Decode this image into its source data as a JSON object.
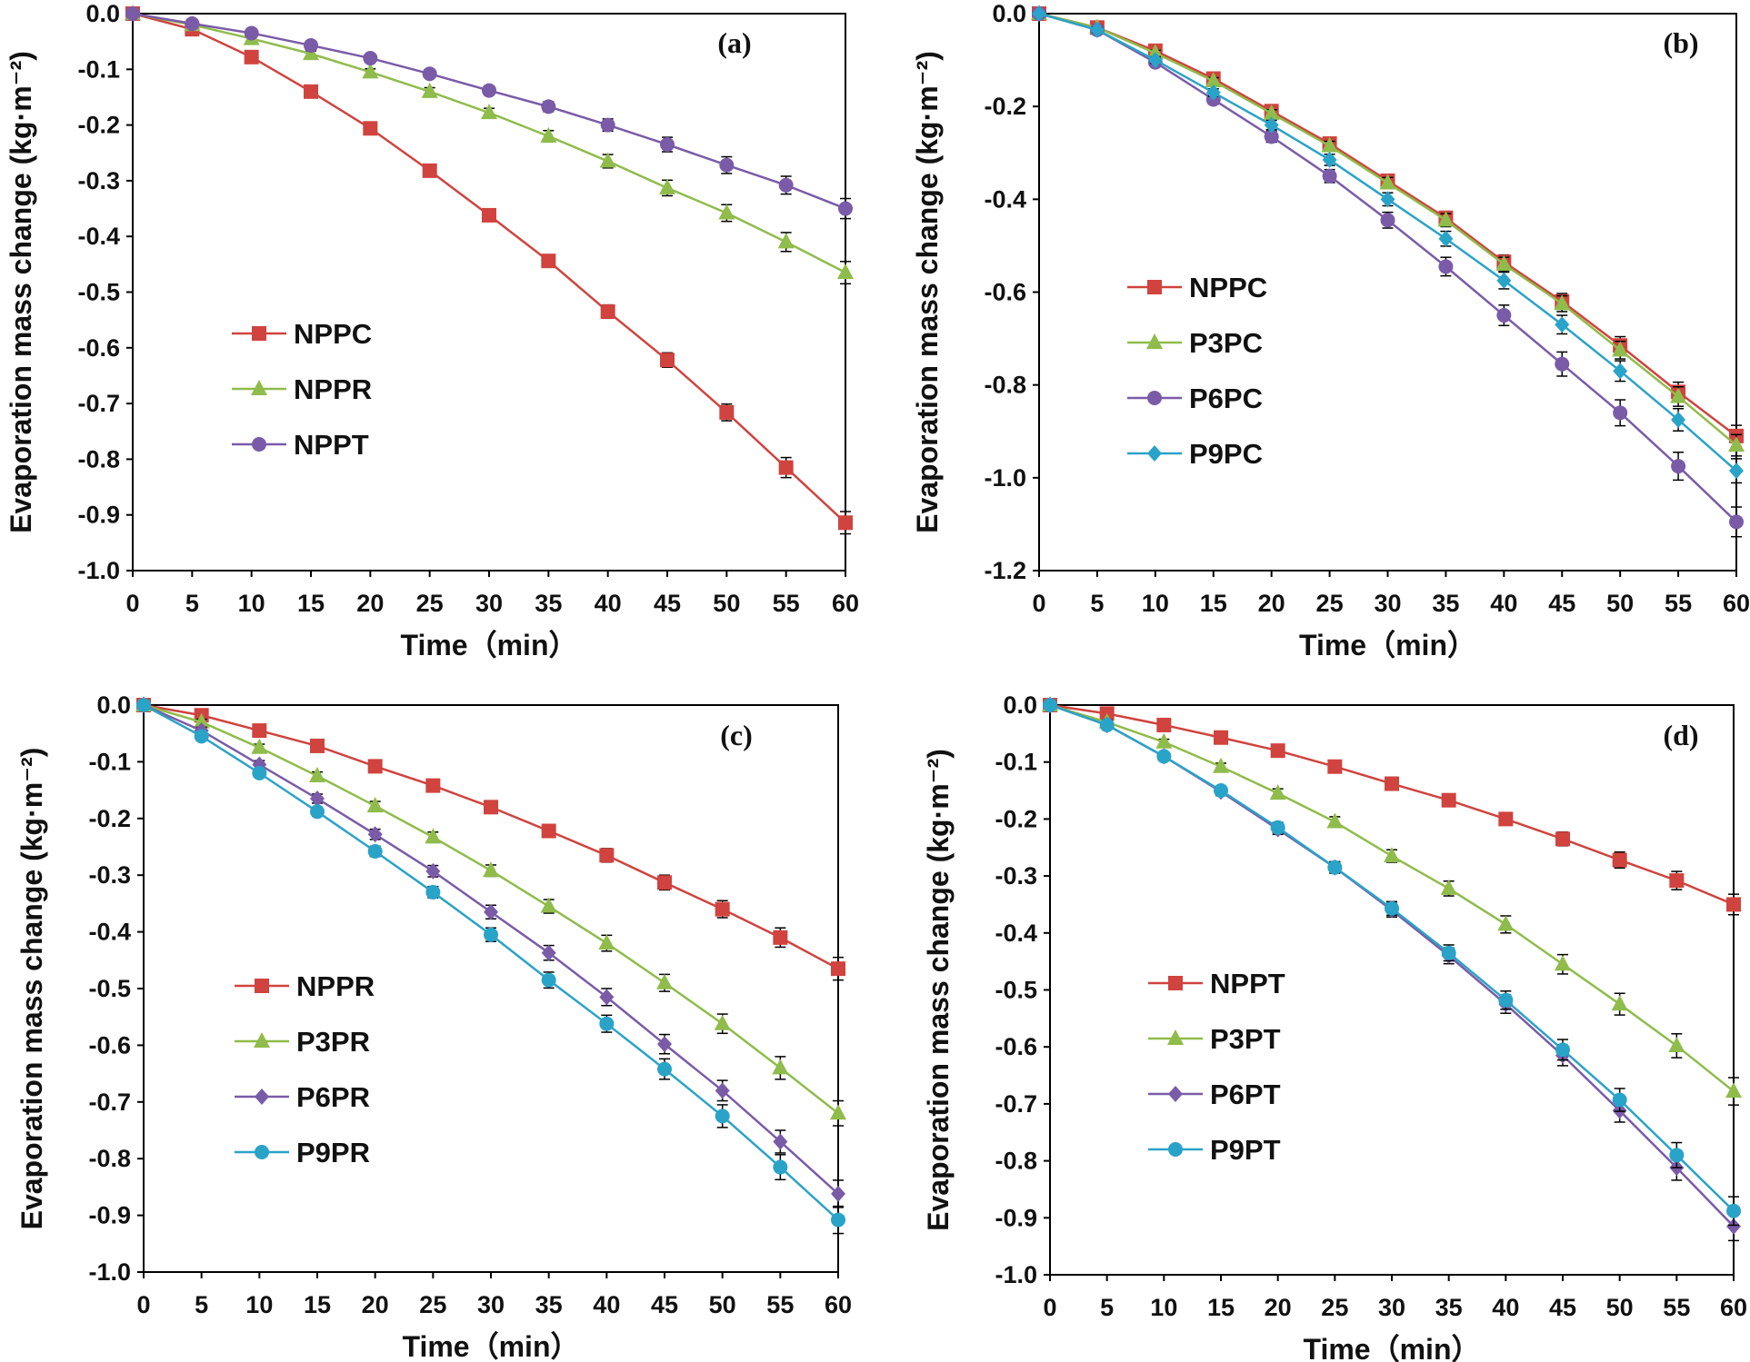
{
  "chart_data": [
    {
      "type": "line",
      "panel_label": "(a)",
      "xlabel": "Time（min）",
      "ylabel": "Evaporation mass change (kg·m⁻²)",
      "x": [
        0,
        5,
        10,
        15,
        20,
        25,
        30,
        35,
        40,
        45,
        50,
        55,
        60
      ],
      "xlim": [
        0,
        60
      ],
      "ylim": [
        -1.0,
        0.0
      ],
      "yticks": [
        0.0,
        -0.1,
        -0.2,
        -0.3,
        -0.4,
        -0.5,
        -0.6,
        -0.7,
        -0.8,
        -0.9,
        -1.0
      ],
      "ytick_labels": [
        "0.0",
        "-0.1",
        "-0.2",
        "-0.3",
        "-0.4",
        "-0.5",
        "-0.6",
        "-0.7",
        "-0.8",
        "-0.9",
        "-1.0"
      ],
      "legend_position": "middle-left",
      "series": [
        {
          "name": "NPPC",
          "color": "#d0433e",
          "marker": "square",
          "values": [
            0,
            -0.028,
            -0.078,
            -0.14,
            -0.206,
            -0.282,
            -0.362,
            -0.444,
            -0.535,
            -0.622,
            -0.716,
            -0.815,
            -0.914
          ],
          "errors": [
            0,
            0.005,
            0.006,
            0.006,
            0.007,
            0.008,
            0.009,
            0.01,
            0.012,
            0.013,
            0.015,
            0.018,
            0.02
          ]
        },
        {
          "name": "NPPR",
          "color": "#8fbc4a",
          "marker": "triangle",
          "values": [
            0,
            -0.02,
            -0.045,
            -0.072,
            -0.105,
            -0.14,
            -0.178,
            -0.22,
            -0.265,
            -0.313,
            -0.358,
            -0.41,
            -0.465
          ],
          "errors": [
            0,
            0.004,
            0.005,
            0.005,
            0.006,
            0.007,
            0.008,
            0.01,
            0.012,
            0.014,
            0.015,
            0.017,
            0.02
          ]
        },
        {
          "name": "NPPT",
          "color": "#7a5ba8",
          "marker": "circle",
          "values": [
            0,
            -0.018,
            -0.035,
            -0.057,
            -0.08,
            -0.108,
            -0.138,
            -0.167,
            -0.2,
            -0.235,
            -0.272,
            -0.308,
            -0.35
          ],
          "errors": [
            0,
            0.003,
            0.004,
            0.005,
            0.005,
            0.006,
            0.008,
            0.009,
            0.011,
            0.013,
            0.015,
            0.016,
            0.018
          ]
        }
      ]
    },
    {
      "type": "line",
      "panel_label": "(b)",
      "xlabel": "Time（min）",
      "ylabel": "Evaporation mass change (kg·m⁻²)",
      "x": [
        0,
        5,
        10,
        15,
        20,
        25,
        30,
        35,
        40,
        45,
        50,
        55,
        60
      ],
      "xlim": [
        0,
        60
      ],
      "ylim": [
        -1.2,
        0.0
      ],
      "yticks": [
        0.0,
        -0.2,
        -0.4,
        -0.6,
        -0.8,
        -1.0,
        -1.2
      ],
      "ytick_labels": [
        "0.0",
        "-0.2",
        "-0.4",
        "-0.6",
        "-0.8",
        "-1.0",
        "-1.2"
      ],
      "legend_position": "middle-left",
      "series": [
        {
          "name": "NPPC",
          "color": "#d0433e",
          "marker": "square",
          "values": [
            0,
            -0.03,
            -0.08,
            -0.14,
            -0.21,
            -0.28,
            -0.36,
            -0.44,
            -0.535,
            -0.62,
            -0.715,
            -0.815,
            -0.91
          ],
          "errors": [
            0,
            0.005,
            0.006,
            0.007,
            0.008,
            0.01,
            0.012,
            0.014,
            0.015,
            0.017,
            0.019,
            0.021,
            0.023
          ]
        },
        {
          "name": "P3PC",
          "color": "#8fbc4a",
          "marker": "triangle",
          "values": [
            0,
            -0.03,
            -0.085,
            -0.145,
            -0.215,
            -0.285,
            -0.365,
            -0.445,
            -0.54,
            -0.625,
            -0.725,
            -0.825,
            -0.93
          ],
          "errors": [
            0,
            0.005,
            0.006,
            0.007,
            0.008,
            0.01,
            0.012,
            0.014,
            0.015,
            0.017,
            0.019,
            0.021,
            0.023
          ]
        },
        {
          "name": "P6PC",
          "color": "#7a5ba8",
          "marker": "circle",
          "values": [
            0,
            -0.035,
            -0.105,
            -0.185,
            -0.265,
            -0.35,
            -0.445,
            -0.545,
            -0.65,
            -0.755,
            -0.86,
            -0.975,
            -1.095
          ],
          "errors": [
            0,
            0.006,
            0.008,
            0.01,
            0.012,
            0.014,
            0.017,
            0.02,
            0.022,
            0.026,
            0.028,
            0.03,
            0.032
          ]
        },
        {
          "name": "P9PC",
          "color": "#2aa3c8",
          "marker": "diamond",
          "values": [
            0,
            -0.035,
            -0.1,
            -0.17,
            -0.24,
            -0.315,
            -0.4,
            -0.485,
            -0.575,
            -0.67,
            -0.77,
            -0.875,
            -0.985
          ],
          "errors": [
            0,
            0.005,
            0.007,
            0.008,
            0.01,
            0.012,
            0.014,
            0.016,
            0.018,
            0.02,
            0.022,
            0.024,
            0.026
          ]
        }
      ]
    },
    {
      "type": "line",
      "panel_label": "(c)",
      "xlabel": "Time（min）",
      "ylabel": "Evaporation mass change (kg·m⁻²)",
      "x": [
        0,
        5,
        10,
        15,
        20,
        25,
        30,
        35,
        40,
        45,
        50,
        55,
        60
      ],
      "xlim": [
        0,
        60
      ],
      "ylim": [
        -1.0,
        0.0
      ],
      "yticks": [
        0.0,
        -0.1,
        -0.2,
        -0.3,
        -0.4,
        -0.5,
        -0.6,
        -0.7,
        -0.8,
        -0.9,
        -1.0
      ],
      "ytick_labels": [
        "0.0",
        "-0.1",
        "-0.2",
        "-0.3",
        "-0.4",
        "-0.5",
        "-0.6",
        "-0.7",
        "-0.8",
        "-0.9",
        "-1.0"
      ],
      "legend_position": "bottom-left",
      "series": [
        {
          "name": "NPPR",
          "color": "#d0433e",
          "marker": "square",
          "values": [
            0,
            -0.018,
            -0.045,
            -0.072,
            -0.108,
            -0.142,
            -0.18,
            -0.222,
            -0.265,
            -0.313,
            -0.36,
            -0.41,
            -0.465
          ],
          "errors": [
            0,
            0.004,
            0.005,
            0.006,
            0.006,
            0.007,
            0.008,
            0.01,
            0.012,
            0.013,
            0.015,
            0.017,
            0.02
          ]
        },
        {
          "name": "P3PR",
          "color": "#8fbc4a",
          "marker": "triangle",
          "values": [
            0,
            -0.03,
            -0.075,
            -0.125,
            -0.178,
            -0.233,
            -0.292,
            -0.355,
            -0.42,
            -0.49,
            -0.562,
            -0.64,
            -0.72
          ],
          "errors": [
            0,
            0.005,
            0.006,
            0.007,
            0.008,
            0.009,
            0.01,
            0.012,
            0.014,
            0.015,
            0.017,
            0.02,
            0.022
          ]
        },
        {
          "name": "P6PR",
          "color": "#7a5ba8",
          "marker": "diamond",
          "values": [
            0,
            -0.045,
            -0.105,
            -0.165,
            -0.228,
            -0.293,
            -0.365,
            -0.437,
            -0.515,
            -0.598,
            -0.68,
            -0.77,
            -0.862
          ],
          "errors": [
            0,
            0.006,
            0.007,
            0.008,
            0.009,
            0.01,
            0.012,
            0.013,
            0.015,
            0.017,
            0.018,
            0.02,
            0.024
          ]
        },
        {
          "name": "P9PR",
          "color": "#2aa3c8",
          "marker": "circle",
          "values": [
            0,
            -0.055,
            -0.12,
            -0.188,
            -0.258,
            -0.33,
            -0.405,
            -0.485,
            -0.562,
            -0.642,
            -0.725,
            -0.815,
            -0.908
          ],
          "errors": [
            0,
            0.006,
            0.007,
            0.008,
            0.009,
            0.01,
            0.012,
            0.014,
            0.015,
            0.018,
            0.02,
            0.022,
            0.024
          ]
        }
      ]
    },
    {
      "type": "line",
      "panel_label": "(d)",
      "xlabel": "Time（min）",
      "ylabel": "Evaporation mass change (kg·m⁻²)",
      "x": [
        0,
        5,
        10,
        15,
        20,
        25,
        30,
        35,
        40,
        45,
        50,
        55,
        60
      ],
      "xlim": [
        0,
        60
      ],
      "ylim": [
        -1.0,
        0.0
      ],
      "yticks": [
        0.0,
        -0.1,
        -0.2,
        -0.3,
        -0.4,
        -0.5,
        -0.6,
        -0.7,
        -0.8,
        -0.9,
        -1.0
      ],
      "ytick_labels": [
        "0.0",
        "-0.1",
        "-0.2",
        "-0.3",
        "-0.4",
        "-0.5",
        "-0.6",
        "-0.7",
        "-0.8",
        "-0.9",
        "-1.0"
      ],
      "legend_position": "bottom-left",
      "series": [
        {
          "name": "NPPT",
          "color": "#d0433e",
          "marker": "square",
          "values": [
            0,
            -0.015,
            -0.035,
            -0.057,
            -0.08,
            -0.108,
            -0.138,
            -0.167,
            -0.2,
            -0.235,
            -0.272,
            -0.308,
            -0.35
          ],
          "errors": [
            0,
            0.003,
            0.004,
            0.005,
            0.005,
            0.006,
            0.007,
            0.008,
            0.01,
            0.012,
            0.014,
            0.016,
            0.018
          ]
        },
        {
          "name": "P3PT",
          "color": "#8fbc4a",
          "marker": "triangle",
          "values": [
            0,
            -0.03,
            -0.065,
            -0.108,
            -0.155,
            -0.205,
            -0.265,
            -0.322,
            -0.385,
            -0.455,
            -0.525,
            -0.598,
            -0.678
          ],
          "errors": [
            0,
            0.004,
            0.005,
            0.006,
            0.008,
            0.009,
            0.011,
            0.013,
            0.015,
            0.017,
            0.019,
            0.021,
            0.024
          ]
        },
        {
          "name": "P6PT",
          "color": "#7a5ba8",
          "marker": "diamond",
          "values": [
            0,
            -0.035,
            -0.09,
            -0.152,
            -0.218,
            -0.285,
            -0.36,
            -0.44,
            -0.525,
            -0.615,
            -0.712,
            -0.812,
            -0.915
          ],
          "errors": [
            0,
            0.005,
            0.006,
            0.007,
            0.009,
            0.01,
            0.012,
            0.014,
            0.016,
            0.018,
            0.02,
            0.022,
            0.025
          ]
        },
        {
          "name": "P9PT",
          "color": "#2aa3c8",
          "marker": "circle",
          "values": [
            0,
            -0.035,
            -0.09,
            -0.15,
            -0.215,
            -0.285,
            -0.357,
            -0.435,
            -0.518,
            -0.605,
            -0.693,
            -0.79,
            -0.888
          ],
          "errors": [
            0,
            0.005,
            0.006,
            0.007,
            0.009,
            0.01,
            0.012,
            0.014,
            0.016,
            0.018,
            0.02,
            0.022,
            0.025
          ]
        }
      ]
    }
  ]
}
